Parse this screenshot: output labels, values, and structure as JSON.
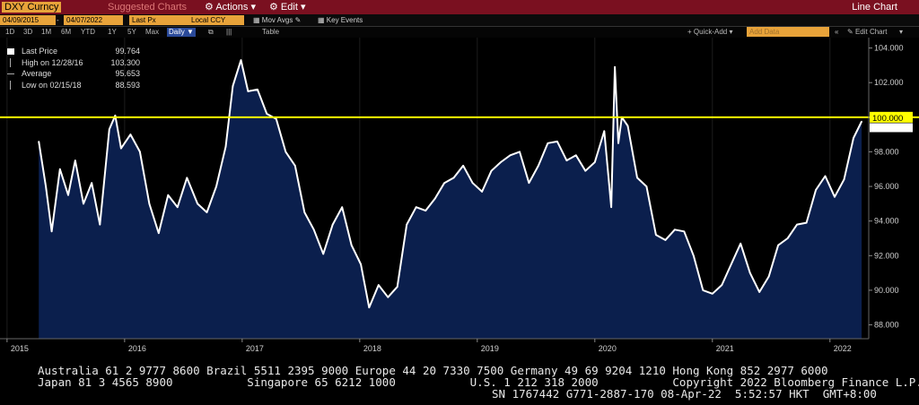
{
  "topbar": {
    "ticker": "DXY Curncy",
    "suggested": "Suggested Charts",
    "actions": "Actions",
    "edit": "Edit",
    "chart_type": "Line Chart"
  },
  "controls": {
    "start_date": "04/09/2015",
    "end_date": "04/07/2022",
    "field": "Last Px",
    "currency": "Local CCY",
    "mov_avgs": "Mov Avgs",
    "key_events": "Key Events",
    "quick_add": "Quick-Add",
    "add_data": "Add Data",
    "edit_chart": "Edit Chart"
  },
  "ranges": [
    "1D",
    "3D",
    "1M",
    "6M",
    "YTD",
    "1Y",
    "5Y",
    "Max"
  ],
  "selected_range": "Daily",
  "table_label": "Table",
  "legend": {
    "last_price_label": "Last Price",
    "last_price": "99.764",
    "high_label": "High on 12/28/16",
    "high": "103.300",
    "average_label": "Average",
    "average": "95.653",
    "low_label": "Low on 02/15/18",
    "low": "88.593"
  },
  "footer": {
    "line1": "Australia 61 2 9777 8600 Brazil 5511 2395 9000 Europe 44 20 7330 7500 Germany 49 69 9204 1210 Hong Kong 852 2977 6000",
    "line2": "Japan 81 3 4565 8900           Singapore 65 6212 1000           U.S. 1 212 318 2000           Copyright 2022 Bloomberg Finance L.P.",
    "line3": "SN 1767442 G771-2887-170 08-Apr-22  5:52:57 HKT  GMT+8:00"
  },
  "chart_data": {
    "type": "area",
    "ylim": [
      87.2,
      104.6
    ],
    "yticks": [
      "104.000",
      "102.000",
      "100.000",
      "98.000",
      "96.000",
      "94.000",
      "92.000",
      "90.000",
      "88.000"
    ],
    "xticks": [
      "2015",
      "2016",
      "2017",
      "2018",
      "2019",
      "2020",
      "2021",
      "2022"
    ],
    "reference_line": {
      "value": 100.0,
      "label": "100.000",
      "color": "#ffff00"
    },
    "series": [
      {
        "line_color": "#ffffff",
        "fill_color": "#0b1f4d",
        "x": [
          2015.27,
          2015.33,
          2015.38,
          2015.45,
          2015.52,
          2015.58,
          2015.65,
          2015.72,
          2015.79,
          2015.87,
          2015.92,
          2015.97,
          2016.05,
          2016.13,
          2016.21,
          2016.29,
          2016.37,
          2016.45,
          2016.53,
          2016.62,
          2016.7,
          2016.78,
          2016.86,
          2016.92,
          2016.99,
          2017.05,
          2017.13,
          2017.21,
          2017.29,
          2017.37,
          2017.45,
          2017.53,
          2017.61,
          2017.69,
          2017.77,
          2017.85,
          2017.93,
          2018.01,
          2018.08,
          2018.16,
          2018.24,
          2018.32,
          2018.4,
          2018.48,
          2018.56,
          2018.64,
          2018.72,
          2018.8,
          2018.88,
          2018.96,
          2019.04,
          2019.12,
          2019.2,
          2019.28,
          2019.36,
          2019.44,
          2019.52,
          2019.6,
          2019.68,
          2019.76,
          2019.84,
          2019.92,
          2020.0,
          2020.08,
          2020.14,
          2020.17,
          2020.2,
          2020.23,
          2020.28,
          2020.36,
          2020.44,
          2020.52,
          2020.6,
          2020.68,
          2020.76,
          2020.84,
          2020.92,
          2021.0,
          2021.08,
          2021.16,
          2021.24,
          2021.32,
          2021.4,
          2021.48,
          2021.56,
          2021.64,
          2021.72,
          2021.8,
          2021.88,
          2021.96,
          2022.04,
          2022.12,
          2022.2,
          2022.27
        ],
        "y": [
          98.6,
          96.0,
          93.4,
          97.0,
          95.5,
          97.5,
          95.0,
          96.2,
          93.8,
          99.3,
          100.1,
          98.2,
          99.0,
          98.0,
          95.0,
          93.3,
          95.5,
          94.8,
          96.5,
          95.0,
          94.5,
          96.0,
          98.3,
          101.8,
          103.3,
          101.5,
          101.6,
          100.2,
          99.9,
          98.0,
          97.2,
          94.5,
          93.5,
          92.1,
          93.8,
          94.8,
          92.6,
          91.5,
          89.0,
          90.3,
          89.6,
          90.2,
          93.8,
          94.8,
          94.6,
          95.3,
          96.2,
          96.5,
          97.2,
          96.2,
          95.7,
          96.9,
          97.4,
          97.8,
          98.0,
          96.2,
          97.2,
          98.5,
          98.6,
          97.5,
          97.8,
          96.9,
          97.4,
          99.2,
          94.8,
          102.9,
          98.5,
          100.0,
          99.5,
          96.5,
          96.0,
          93.2,
          92.9,
          93.5,
          93.4,
          92.0,
          90.0,
          89.8,
          90.3,
          91.5,
          92.7,
          91.0,
          89.9,
          90.8,
          92.6,
          93.0,
          93.8,
          93.9,
          95.8,
          96.6,
          95.4,
          96.4,
          98.8,
          99.76
        ]
      }
    ]
  }
}
